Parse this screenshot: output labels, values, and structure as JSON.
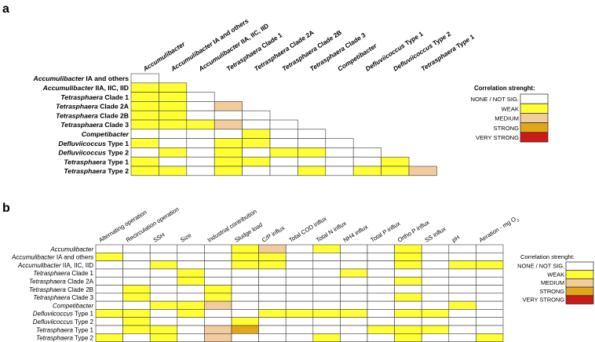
{
  "colors": {
    "none": "#ffffff",
    "weak": "#ffff33",
    "medium": "#f2cc9c",
    "strong": "#e0a818",
    "very_strong": "#cc1a1a"
  },
  "legend_levels": [
    "none",
    "weak",
    "medium",
    "strong",
    "very_strong"
  ],
  "panel_a": {
    "letter": "a",
    "columns": [
      [
        {
          "t": "Accumulibacter",
          "i": true
        }
      ],
      [
        {
          "t": "Accumulibacter",
          "i": true
        },
        {
          "t": " IA and others",
          "i": false
        }
      ],
      [
        {
          "t": "Accumulibacter",
          "i": true
        },
        {
          "t": " IIA, IIC, IID",
          "i": false
        }
      ],
      [
        {
          "t": "Tetrasphaera",
          "i": true
        },
        {
          "t": " Clade 1",
          "i": false
        }
      ],
      [
        {
          "t": "Tetrasphaera",
          "i": true
        },
        {
          "t": " Clade 2A",
          "i": false
        }
      ],
      [
        {
          "t": "Tetrasphaera",
          "i": true
        },
        {
          "t": " Clade 2B",
          "i": false
        }
      ],
      [
        {
          "t": "Tetrasphaera",
          "i": true
        },
        {
          "t": " Clade 3",
          "i": false
        }
      ],
      [
        {
          "t": "Competibacter",
          "i": true
        }
      ],
      [
        {
          "t": "Defluviicoccus",
          "i": true
        },
        {
          "t": " Type 1",
          "i": false
        }
      ],
      [
        {
          "t": "Defluviicoccus",
          "i": true
        },
        {
          "t": " Type 2",
          "i": false
        }
      ],
      [
        {
          "t": "Tetrasphaera",
          "i": true
        },
        {
          "t": " Type 1",
          "i": false
        }
      ]
    ],
    "rows": [
      [
        {
          "t": "Accumulibacter",
          "i": true
        },
        {
          "t": " IA and others",
          "i": false
        }
      ],
      [
        {
          "t": "Accumulibacter",
          "i": true
        },
        {
          "t": " IIA, IIC, IID",
          "i": false
        }
      ],
      [
        {
          "t": "Tetrasphaera",
          "i": true
        },
        {
          "t": " Clade 1",
          "i": false
        }
      ],
      [
        {
          "t": "Tetrasphaera",
          "i": true
        },
        {
          "t": " Clade 2A",
          "i": false
        }
      ],
      [
        {
          "t": "Tetrasphaera",
          "i": true
        },
        {
          "t": " Clade 2B",
          "i": false
        }
      ],
      [
        {
          "t": "Tetrasphaera",
          "i": true
        },
        {
          "t": " Clade 3",
          "i": false
        }
      ],
      [
        {
          "t": "Competibacter",
          "i": true
        }
      ],
      [
        {
          "t": "Defluviicoccus",
          "i": true
        },
        {
          "t": " Type 1",
          "i": false
        }
      ],
      [
        {
          "t": "Defluviicoccus",
          "i": true
        },
        {
          "t": " Type 2",
          "i": false
        }
      ],
      [
        {
          "t": "Tetrasphaera",
          "i": true
        },
        {
          "t": " Type 1",
          "i": false
        }
      ],
      [
        {
          "t": "Tetrasphaera",
          "i": true
        },
        {
          "t": " Type 2",
          "i": false
        }
      ]
    ],
    "matrix": [
      [
        0
      ],
      [
        1,
        1
      ],
      [
        1,
        1,
        0
      ],
      [
        1,
        1,
        0,
        2
      ],
      [
        1,
        1,
        0,
        0,
        0
      ],
      [
        1,
        1,
        1,
        2,
        0,
        0
      ],
      [
        0,
        0,
        0,
        0,
        1,
        0,
        0
      ],
      [
        1,
        0,
        0,
        1,
        1,
        0,
        0,
        0
      ],
      [
        0,
        1,
        0,
        1,
        0,
        1,
        1,
        0,
        0
      ],
      [
        1,
        0,
        0,
        1,
        1,
        0,
        0,
        0,
        0,
        1
      ],
      [
        1,
        1,
        0,
        1,
        0,
        0,
        1,
        0,
        1,
        1,
        2
      ]
    ],
    "legend": {
      "title": "Correlation strenght:",
      "labels": [
        "NONE / NOT SIG.",
        "WEAK",
        "MEDIUM",
        "STRONG",
        "VERY STRONG"
      ]
    }
  },
  "panel_b": {
    "letter": "b",
    "columns": [
      [
        {
          "t": "Alternating operation"
        }
      ],
      [
        {
          "t": "Recirculation operation"
        }
      ],
      [
        {
          "t": "SSH"
        }
      ],
      [
        {
          "t": "Size"
        }
      ],
      [
        {
          "t": "Industrial contribution"
        }
      ],
      [
        {
          "t": "Sludge load"
        }
      ],
      [
        {
          "t": "C/P influx"
        }
      ],
      [
        {
          "t": "Total COD influx"
        }
      ],
      [
        {
          "t": "Total N influx"
        }
      ],
      [
        {
          "t": "NH4 influx"
        }
      ],
      [
        {
          "t": "Total P influx"
        }
      ],
      [
        {
          "t": "Ortho P influx"
        }
      ],
      [
        {
          "t": "SS influx"
        }
      ],
      [
        {
          "t": "pH"
        }
      ],
      [
        {
          "t": "Aeration - mg O"
        },
        {
          "t": "2",
          "sub": true
        }
      ]
    ],
    "rows": [
      [
        {
          "t": "Accumulibacter",
          "i": true
        }
      ],
      [
        {
          "t": "Accumulibacter",
          "i": true
        },
        {
          "t": " IA and others",
          "i": false
        }
      ],
      [
        {
          "t": "Accumulibacter",
          "i": true
        },
        {
          "t": " IIA, IIC, IID",
          "i": false
        }
      ],
      [
        {
          "t": "Tetrasphaera",
          "i": true
        },
        {
          "t": " Clade 1",
          "i": false
        }
      ],
      [
        {
          "t": "Tetrasphaera",
          "i": true
        },
        {
          "t": " Clade 2A",
          "i": false
        }
      ],
      [
        {
          "t": "Tetrasphaera",
          "i": true
        },
        {
          "t": " Clade 2B",
          "i": false
        }
      ],
      [
        {
          "t": "Tetrasphaera",
          "i": true
        },
        {
          "t": " Clade 3",
          "i": false
        }
      ],
      [
        {
          "t": "Competibacter",
          "i": true
        }
      ],
      [
        {
          "t": "Defluviicoccus",
          "i": true
        },
        {
          "t": " Type 1",
          "i": false
        }
      ],
      [
        {
          "t": "Defluviicoccus",
          "i": true
        },
        {
          "t": " Type 2",
          "i": false
        }
      ],
      [
        {
          "t": "Tetrasphaera",
          "i": true
        },
        {
          "t": " Type 1",
          "i": false
        }
      ],
      [
        {
          "t": "Tetrasphaera",
          "i": true
        },
        {
          "t": " Type 2",
          "i": false
        }
      ]
    ],
    "matrix": [
      [
        0,
        0,
        0,
        0,
        0,
        1,
        2,
        0,
        1,
        0,
        0,
        1,
        0,
        0,
        0
      ],
      [
        1,
        0,
        0,
        0,
        0,
        1,
        1,
        0,
        0,
        0,
        0,
        1,
        0,
        0,
        0
      ],
      [
        0,
        0,
        1,
        0,
        0,
        1,
        1,
        0,
        0,
        0,
        0,
        1,
        0,
        1,
        1
      ],
      [
        0,
        0,
        0,
        1,
        0,
        0,
        0,
        0,
        0,
        1,
        0,
        0,
        0,
        0,
        0
      ],
      [
        0,
        0,
        0,
        1,
        0,
        0,
        0,
        0,
        0,
        0,
        0,
        1,
        0,
        0,
        0
      ],
      [
        0,
        1,
        0,
        0,
        1,
        0,
        0,
        0,
        0,
        0,
        0,
        0,
        0,
        0,
        0
      ],
      [
        0,
        1,
        0,
        0,
        1,
        0,
        0,
        0,
        0,
        0,
        0,
        1,
        0,
        0,
        0
      ],
      [
        0,
        0,
        1,
        1,
        2,
        0,
        0,
        0,
        0,
        0,
        0,
        0,
        0,
        1,
        0
      ],
      [
        1,
        1,
        0,
        1,
        0,
        0,
        1,
        1,
        1,
        1,
        0,
        1,
        1,
        0,
        0
      ],
      [
        0,
        1,
        0,
        0,
        0,
        1,
        0,
        0,
        0,
        0,
        0,
        0,
        0,
        0,
        0
      ],
      [
        0,
        1,
        1,
        0,
        2,
        3,
        0,
        0,
        0,
        0,
        1,
        1,
        1,
        0,
        0
      ],
      [
        1,
        0,
        1,
        0,
        2,
        0,
        0,
        0,
        1,
        0,
        0,
        1,
        0,
        0,
        1
      ]
    ],
    "legend": {
      "title": "Correlation strenght:",
      "labels": [
        "NONE / NOT SIG.",
        "WEAK",
        "MEDIUM",
        "STRONG",
        "VERY STRONG"
      ]
    }
  }
}
